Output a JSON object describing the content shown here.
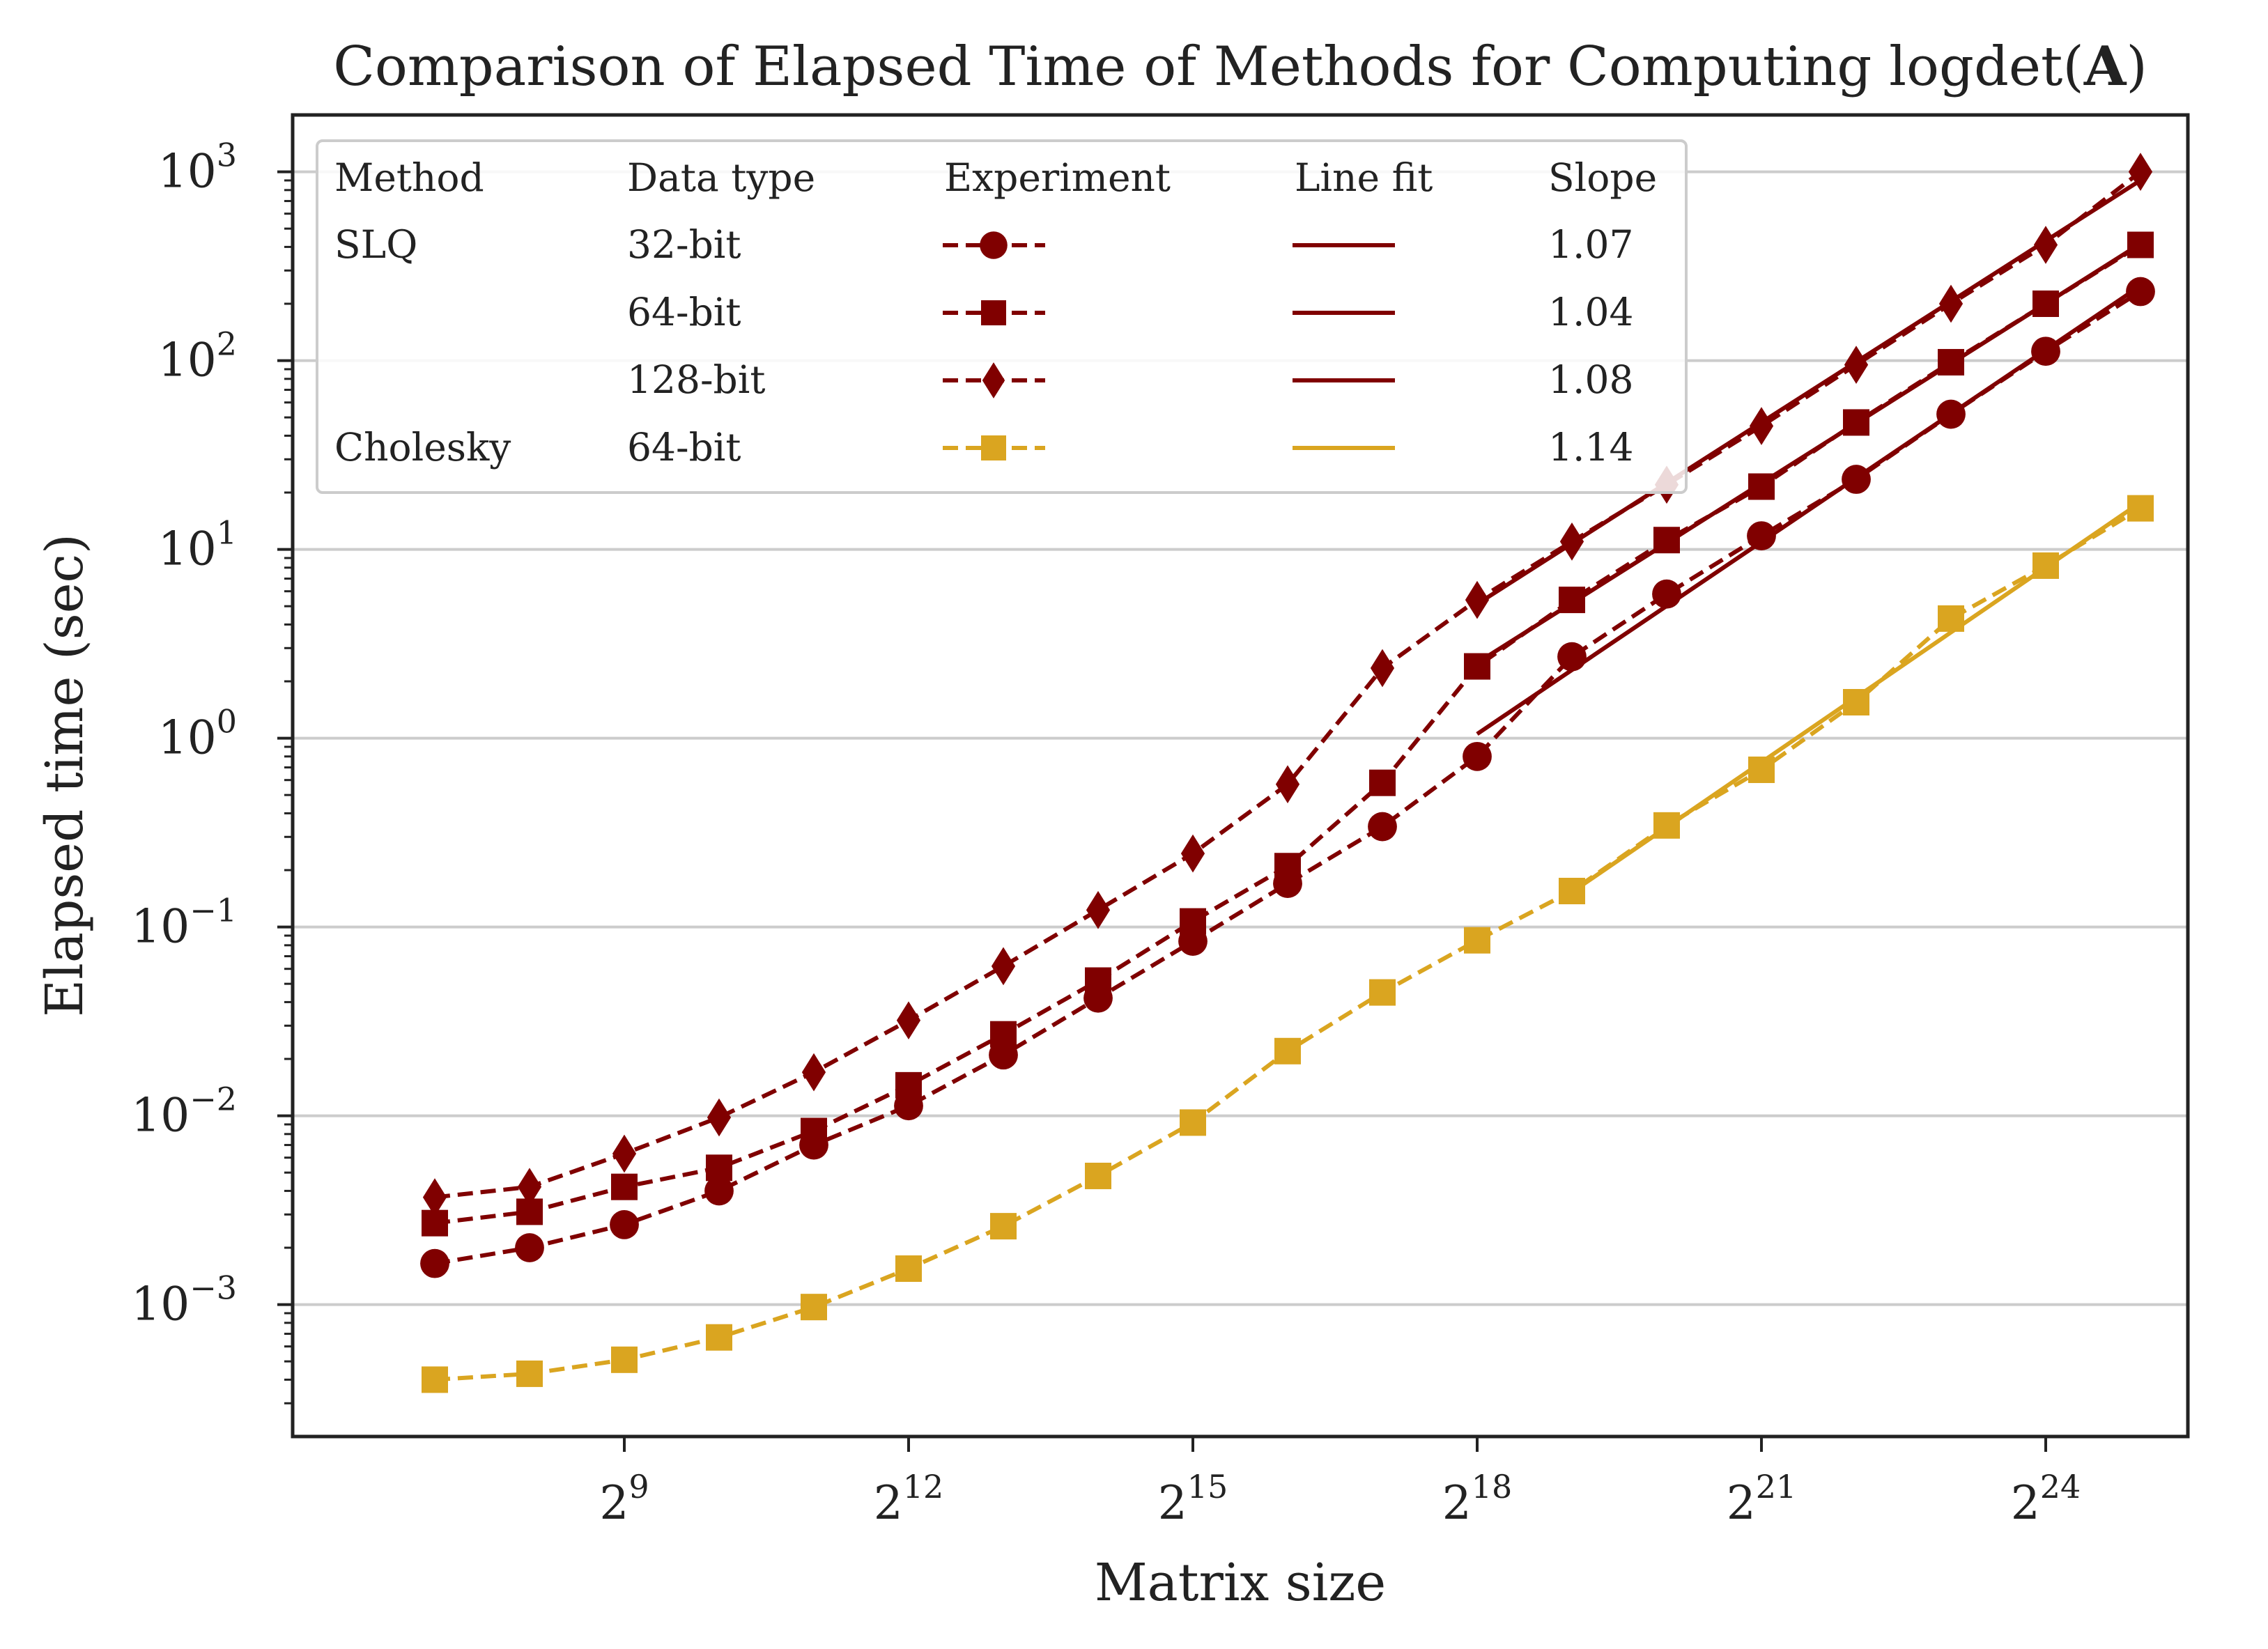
{
  "chart_data": {
    "type": "line",
    "title": "Comparison of Elapsed Time of Methods for Computing logdet(A)",
    "title_prefix": "Comparison of Elapsed Time of Methods for Computing logdet(",
    "title_bold": "A",
    "title_suffix": ")",
    "xlabel": "Matrix size",
    "ylabel": "Elapsed time (sec)",
    "x_scale": "log2",
    "y_scale": "log10",
    "x_exponent_range": [
      5.5,
      25.5
    ],
    "y_range": [
      0.0002,
      2000
    ],
    "grid": "horizontal",
    "x_ticks": [
      {
        "base": "2",
        "exp": "9",
        "value": 9
      },
      {
        "base": "2",
        "exp": "12",
        "value": 12
      },
      {
        "base": "2",
        "exp": "15",
        "value": 15
      },
      {
        "base": "2",
        "exp": "18",
        "value": 18
      },
      {
        "base": "2",
        "exp": "21",
        "value": 21
      },
      {
        "base": "2",
        "exp": "24",
        "value": 24
      }
    ],
    "y_ticks": [
      {
        "base": "10",
        "exp": "−3",
        "value": -3
      },
      {
        "base": "10",
        "exp": "−2",
        "value": -2
      },
      {
        "base": "10",
        "exp": "−1",
        "value": -1
      },
      {
        "base": "10",
        "exp": "0",
        "value": 0
      },
      {
        "base": "10",
        "exp": "1",
        "value": 1
      },
      {
        "base": "10",
        "exp": "2",
        "value": 2
      },
      {
        "base": "10",
        "exp": "3",
        "value": 3
      }
    ],
    "x_exponents": [
      7,
      8,
      9,
      10,
      11,
      12,
      13,
      14,
      15,
      16,
      17,
      18,
      19,
      20,
      21,
      22,
      23,
      24,
      25
    ],
    "series": [
      {
        "method": "SLQ",
        "data_type": "32-bit",
        "slope": "1.07",
        "color": "#800000",
        "marker": "circle",
        "values": [
          0.00165,
          0.002,
          0.00265,
          0.004,
          0.007,
          0.0113,
          0.021,
          0.042,
          0.084,
          0.17,
          0.34,
          0.8,
          2.7,
          5.8,
          11.8,
          23.5,
          52,
          112,
          232
        ],
        "fit_start_exponent": 18
      },
      {
        "method": "",
        "data_type": "64-bit",
        "slope": "1.04",
        "color": "#800000",
        "marker": "square",
        "values": [
          0.0027,
          0.0031,
          0.0042,
          0.0053,
          0.0083,
          0.0145,
          0.027,
          0.052,
          0.107,
          0.21,
          0.58,
          2.4,
          5.4,
          11.2,
          21.5,
          47,
          98,
          200,
          410
        ],
        "fit_start_exponent": 18
      },
      {
        "method": "",
        "data_type": "128-bit",
        "slope": "1.08",
        "color": "#800000",
        "marker": "diamond",
        "values": [
          0.0037,
          0.0042,
          0.0063,
          0.0098,
          0.017,
          0.032,
          0.062,
          0.123,
          0.245,
          0.57,
          2.35,
          5.4,
          11,
          22,
          45,
          95,
          200,
          410,
          1000
        ],
        "fit_start_exponent": 18
      },
      {
        "method": "Cholesky",
        "data_type": "64-bit",
        "slope": "1.14",
        "color": "#DAA520",
        "marker": "square",
        "values": [
          0.0004,
          0.00043,
          0.00051,
          0.00067,
          0.00097,
          0.00155,
          0.0026,
          0.0048,
          0.0092,
          0.022,
          0.045,
          0.085,
          0.155,
          0.345,
          0.68,
          1.55,
          4.3,
          8.2,
          16.5
        ],
        "fit_start_exponent": 19
      }
    ],
    "legend": {
      "position": "top-left",
      "headers": [
        "Method",
        "Data type",
        "Experiment",
        "Line fit",
        "Slope"
      ]
    }
  }
}
